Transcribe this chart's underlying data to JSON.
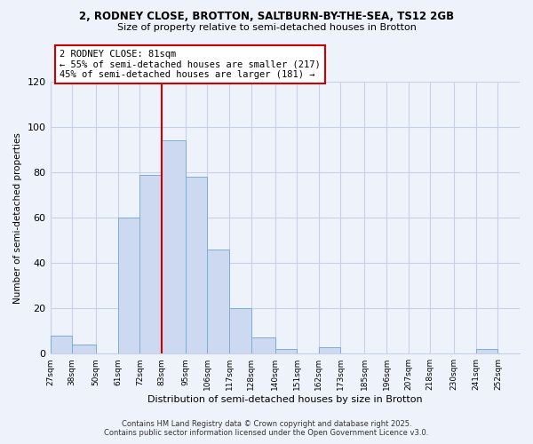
{
  "title_line1": "2, RODNEY CLOSE, BROTTON, SALTBURN-BY-THE-SEA, TS12 2GB",
  "title_line2": "Size of property relative to semi-detached houses in Brotton",
  "xlabel": "Distribution of semi-detached houses by size in Brotton",
  "ylabel": "Number of semi-detached properties",
  "bin_labels": [
    "27sqm",
    "38sqm",
    "50sqm",
    "61sqm",
    "72sqm",
    "83sqm",
    "95sqm",
    "106sqm",
    "117sqm",
    "128sqm",
    "140sqm",
    "151sqm",
    "162sqm",
    "173sqm",
    "185sqm",
    "196sqm",
    "207sqm",
    "218sqm",
    "230sqm",
    "241sqm",
    "252sqm"
  ],
  "bin_edges": [
    27,
    38,
    50,
    61,
    72,
    83,
    95,
    106,
    117,
    128,
    140,
    151,
    162,
    173,
    185,
    196,
    207,
    218,
    230,
    241,
    252
  ],
  "counts": [
    8,
    4,
    0,
    60,
    79,
    94,
    78,
    46,
    20,
    7,
    2,
    0,
    3,
    0,
    0,
    0,
    0,
    0,
    0,
    2,
    0
  ],
  "bar_color": "#ccd9f0",
  "bar_edge_color": "#7aaed6",
  "property_line_x": 83,
  "annotation_title": "2 RODNEY CLOSE: 81sqm",
  "annotation_line1": "← 55% of semi-detached houses are smaller (217)",
  "annotation_line2": "45% of semi-detached houses are larger (181) →",
  "annotation_box_facecolor": "#ffffff",
  "annotation_box_edgecolor": "#cc0000",
  "vline_color": "#cc0000",
  "ylim": [
    0,
    120
  ],
  "yticks": [
    0,
    20,
    40,
    60,
    80,
    100,
    120
  ],
  "footer1": "Contains HM Land Registry data © Crown copyright and database right 2025.",
  "footer2": "Contains public sector information licensed under the Open Government Licence v3.0.",
  "background_color": "#eef2fb",
  "grid_color": "#c8d0e8"
}
